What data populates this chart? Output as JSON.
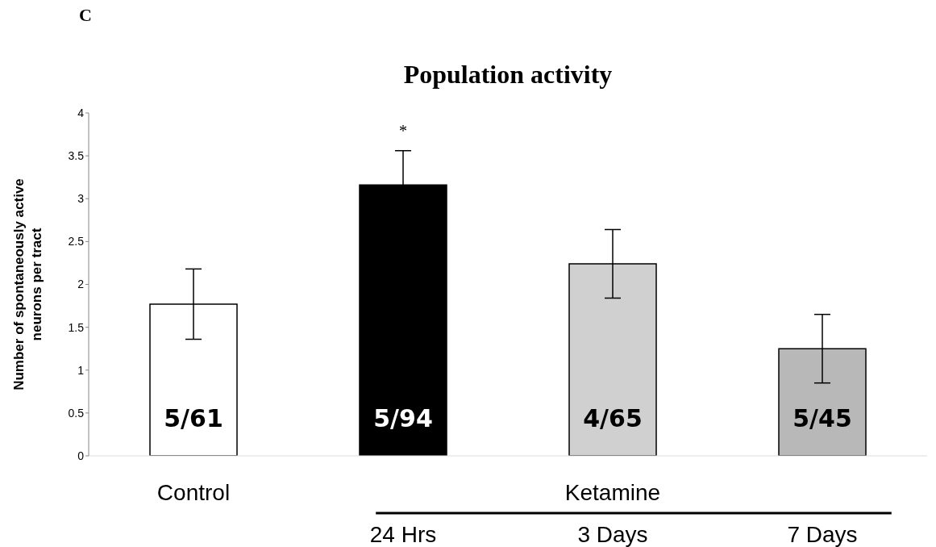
{
  "chart_data": {
    "type": "bar",
    "title": "Population activity",
    "ylabel": "Number of spontaneously active neurons per tract",
    "categories": [
      "Control",
      "24 Hrs",
      "3 Days",
      "7 Days"
    ],
    "values": [
      1.77,
      3.16,
      2.24,
      1.25
    ],
    "errors": [
      0.41,
      0.4,
      0.4,
      0.4
    ],
    "colors": [
      "#ffffff",
      "#000000",
      "#d0d0d0",
      "#b8b8b8"
    ],
    "value_labels": [
      "5/61",
      "5/94",
      "4/65",
      "5/45"
    ],
    "ylim": [
      0,
      4
    ],
    "yticks": [
      0,
      0.5,
      1,
      1.5,
      2,
      2.5,
      3,
      3.5,
      4
    ],
    "grid": false,
    "legend": false,
    "annotations": [
      "C",
      "Ketamine",
      "*"
    ]
  }
}
